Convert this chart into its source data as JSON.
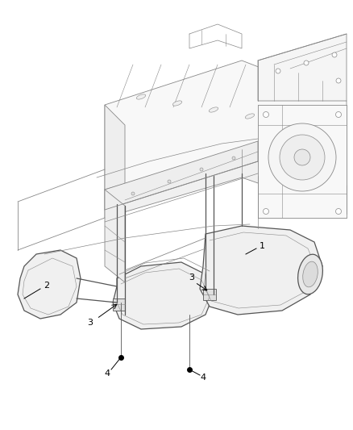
{
  "background_color": "#ffffff",
  "line_color": "#888888",
  "dark_line_color": "#555555",
  "figsize": [
    4.38,
    5.33
  ],
  "dpi": 100,
  "callout_fontsize": 8
}
